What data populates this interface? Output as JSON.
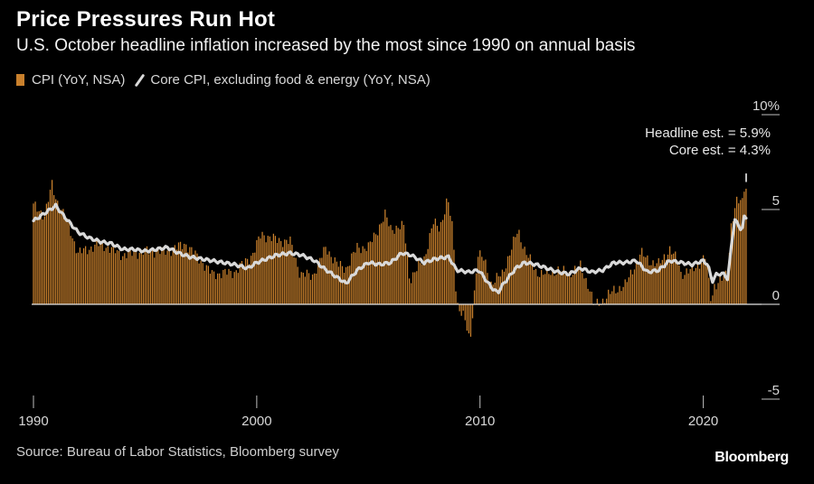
{
  "header": {
    "title": "Price Pressures Run Hot",
    "subtitle": "U.S. October headline inflation increased by the most since 1990 on annual basis"
  },
  "legend": {
    "cpi_label": "CPI (YoY, NSA)",
    "core_label": "Core CPI, excluding food & energy (YoY, NSA)"
  },
  "annotations": {
    "headline": "Headline est. = 5.9%",
    "core": "Core est. = 4.3%"
  },
  "footer": {
    "source": "Source: Bureau of Labor Statistics, Bloomberg survey",
    "brand": "Bloomberg"
  },
  "colors": {
    "background": "#000000",
    "cpi_bar": "#c9802c",
    "core_line": "#d9d9d9",
    "axis": "#bfbfbf"
  },
  "chart_data": {
    "type": "bar",
    "title": "Price Pressures Run Hot",
    "xlabel": "",
    "ylabel": "",
    "ylim": [
      -5,
      10
    ],
    "yticks": [
      {
        "value": 10,
        "label": "10%"
      },
      {
        "value": 5,
        "label": "5"
      },
      {
        "value": 0,
        "label": "0"
      },
      {
        "value": -5,
        "label": "-5"
      }
    ],
    "xlim": [
      1990.0,
      2021.92
    ],
    "xticks": [
      {
        "value": 1990,
        "label": "1990"
      },
      {
        "value": 2000,
        "label": "2000"
      },
      {
        "value": 2010,
        "label": "2010"
      },
      {
        "value": 2020,
        "label": "2020"
      }
    ],
    "estimates": {
      "headline": 5.9,
      "core": 4.3
    },
    "series": [
      {
        "name": "CPI (YoY, NSA)",
        "type": "bar",
        "frequency": "monthly",
        "start": 1990.0,
        "anchors": [
          [
            1990.0,
            5.2
          ],
          [
            1990.5,
            4.7
          ],
          [
            1990.83,
            6.3
          ],
          [
            1991.0,
            5.6
          ],
          [
            1991.5,
            4.4
          ],
          [
            1992.0,
            2.7
          ],
          [
            1993.0,
            3.2
          ],
          [
            1994.0,
            2.6
          ],
          [
            1995.0,
            2.8
          ],
          [
            1996.0,
            2.8
          ],
          [
            1996.8,
            3.2
          ],
          [
            1997.5,
            2.3
          ],
          [
            1998.0,
            1.6
          ],
          [
            1999.0,
            1.7
          ],
          [
            1999.8,
            2.6
          ],
          [
            2000.2,
            3.7
          ],
          [
            2000.9,
            3.4
          ],
          [
            2001.5,
            3.3
          ],
          [
            2001.95,
            1.6
          ],
          [
            2002.5,
            1.5
          ],
          [
            2003.1,
            3.0
          ],
          [
            2003.6,
            2.1
          ],
          [
            2004.0,
            1.9
          ],
          [
            2004.5,
            3.0
          ],
          [
            2005.0,
            3.0
          ],
          [
            2005.75,
            4.7
          ],
          [
            2006.0,
            4.0
          ],
          [
            2006.6,
            4.1
          ],
          [
            2006.85,
            1.3
          ],
          [
            2007.5,
            2.4
          ],
          [
            2007.9,
            4.3
          ],
          [
            2008.2,
            4.0
          ],
          [
            2008.55,
            5.6
          ],
          [
            2008.8,
            3.7
          ],
          [
            2008.95,
            0.1
          ],
          [
            2009.3,
            -0.7
          ],
          [
            2009.55,
            -2.1
          ],
          [
            2009.9,
            2.7
          ],
          [
            2010.2,
            2.3
          ],
          [
            2010.5,
            1.1
          ],
          [
            2011.0,
            1.6
          ],
          [
            2011.7,
            3.9
          ],
          [
            2012.0,
            2.9
          ],
          [
            2012.5,
            1.7
          ],
          [
            2013.0,
            1.6
          ],
          [
            2013.5,
            1.8
          ],
          [
            2014.0,
            1.6
          ],
          [
            2014.5,
            2.0
          ],
          [
            2014.92,
            0.8
          ],
          [
            2015.1,
            -0.1
          ],
          [
            2015.5,
            0.2
          ],
          [
            2015.95,
            0.7
          ],
          [
            2016.5,
            1.0
          ],
          [
            2016.95,
            2.1
          ],
          [
            2017.2,
            2.7
          ],
          [
            2017.7,
            2.2
          ],
          [
            2018.0,
            2.1
          ],
          [
            2018.5,
            2.9
          ],
          [
            2018.9,
            2.2
          ],
          [
            2019.0,
            1.6
          ],
          [
            2019.5,
            1.8
          ],
          [
            2019.95,
            2.3
          ],
          [
            2020.1,
            2.5
          ],
          [
            2020.35,
            0.2
          ],
          [
            2020.5,
            1.0
          ],
          [
            2020.92,
            1.4
          ],
          [
            2021.1,
            1.7
          ],
          [
            2021.25,
            4.2
          ],
          [
            2021.4,
            5.0
          ],
          [
            2021.5,
            5.4
          ],
          [
            2021.67,
            5.4
          ],
          [
            2021.75,
            5.4
          ],
          [
            2021.83,
            6.2
          ]
        ]
      },
      {
        "name": "Core CPI, excluding food & energy (YoY, NSA)",
        "type": "line",
        "frequency": "monthly",
        "start": 1990.0,
        "anchors": [
          [
            1990.0,
            4.4
          ],
          [
            1990.5,
            4.8
          ],
          [
            1991.0,
            5.2
          ],
          [
            1991.4,
            4.6
          ],
          [
            1992.0,
            3.8
          ],
          [
            1992.5,
            3.5
          ],
          [
            1993.0,
            3.3
          ],
          [
            1993.5,
            3.2
          ],
          [
            1994.0,
            2.9
          ],
          [
            1994.5,
            2.9
          ],
          [
            1995.0,
            2.8
          ],
          [
            1996.0,
            3.0
          ],
          [
            1996.5,
            2.7
          ],
          [
            1997.0,
            2.5
          ],
          [
            1998.0,
            2.3
          ],
          [
            1999.0,
            2.1
          ],
          [
            1999.6,
            1.9
          ],
          [
            2000.0,
            2.2
          ],
          [
            2000.9,
            2.6
          ],
          [
            2001.5,
            2.7
          ],
          [
            2002.0,
            2.6
          ],
          [
            2002.6,
            2.3
          ],
          [
            2003.0,
            1.9
          ],
          [
            2003.5,
            1.5
          ],
          [
            2004.0,
            1.1
          ],
          [
            2004.5,
            1.8
          ],
          [
            2005.0,
            2.2
          ],
          [
            2005.5,
            2.1
          ],
          [
            2006.0,
            2.2
          ],
          [
            2006.5,
            2.7
          ],
          [
            2006.9,
            2.6
          ],
          [
            2007.5,
            2.2
          ],
          [
            2008.0,
            2.4
          ],
          [
            2008.6,
            2.5
          ],
          [
            2008.95,
            1.8
          ],
          [
            2009.5,
            1.7
          ],
          [
            2009.95,
            1.8
          ],
          [
            2010.5,
            0.9
          ],
          [
            2010.8,
            0.6
          ],
          [
            2011.0,
            1.0
          ],
          [
            2011.6,
            1.9
          ],
          [
            2012.0,
            2.2
          ],
          [
            2012.5,
            2.1
          ],
          [
            2013.0,
            1.9
          ],
          [
            2013.5,
            1.7
          ],
          [
            2014.0,
            1.6
          ],
          [
            2014.5,
            1.9
          ],
          [
            2015.0,
            1.7
          ],
          [
            2015.5,
            1.8
          ],
          [
            2016.0,
            2.2
          ],
          [
            2016.5,
            2.2
          ],
          [
            2017.0,
            2.3
          ],
          [
            2017.5,
            1.7
          ],
          [
            2018.0,
            1.8
          ],
          [
            2018.5,
            2.3
          ],
          [
            2019.0,
            2.2
          ],
          [
            2019.5,
            2.1
          ],
          [
            2020.0,
            2.3
          ],
          [
            2020.2,
            2.1
          ],
          [
            2020.4,
            1.2
          ],
          [
            2020.6,
            1.6
          ],
          [
            2020.95,
            1.6
          ],
          [
            2021.1,
            1.3
          ],
          [
            2021.25,
            3.0
          ],
          [
            2021.4,
            4.5
          ],
          [
            2021.5,
            4.3
          ],
          [
            2021.67,
            4.0
          ],
          [
            2021.75,
            4.0
          ],
          [
            2021.83,
            4.6
          ]
        ]
      }
    ]
  }
}
